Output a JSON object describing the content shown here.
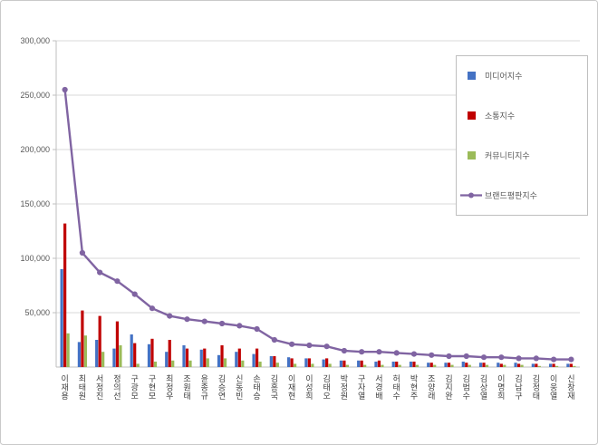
{
  "chart_data": {
    "type": "bar",
    "title": "",
    "xlabel": "",
    "ylabel": "",
    "ylim": [
      0,
      300000
    ],
    "ytick_interval": 50000,
    "ytick_labels": [
      "50,000",
      "100,000",
      "150,000",
      "200,000",
      "250,000",
      "300,000"
    ],
    "grid": true,
    "legend_position": "right-top",
    "categories": [
      "이재용",
      "최태원",
      "서정진",
      "정의선",
      "구광모",
      "구현모",
      "최정우",
      "조원태",
      "윤종규",
      "김승연",
      "신동빈",
      "손태승",
      "김홍국",
      "이재현",
      "이성희",
      "김태오",
      "박정원",
      "구자열",
      "서경배",
      "허태수",
      "박현주",
      "조양래",
      "김지완",
      "김범수",
      "김상열",
      "이명희",
      "김남구",
      "김정태",
      "이웅열",
      "신창재"
    ],
    "series": [
      {
        "name": "미디어지수",
        "kind": "bar",
        "color": "#4472C4",
        "values": [
          90000,
          23000,
          25000,
          17000,
          30000,
          21000,
          14000,
          20000,
          16000,
          11000,
          14000,
          12000,
          10000,
          9000,
          8000,
          7000,
          6000,
          6000,
          5000,
          5000,
          5000,
          4000,
          4000,
          5000,
          4000,
          4000,
          4000,
          3000,
          3000,
          3000
        ]
      },
      {
        "name": "소통지수",
        "kind": "bar",
        "color": "#C00000",
        "values": [
          132000,
          52000,
          47000,
          42000,
          22000,
          26000,
          25000,
          17000,
          17000,
          20000,
          17000,
          17000,
          10000,
          8000,
          8000,
          8000,
          6000,
          6000,
          6000,
          5000,
          5000,
          4000,
          4000,
          4000,
          4000,
          3000,
          3000,
          3000,
          3000,
          3000
        ]
      },
      {
        "name": "커뮤니티지수",
        "kind": "bar",
        "color": "#9BBB59",
        "values": [
          31000,
          29000,
          14000,
          20000,
          3000,
          5000,
          6000,
          6000,
          8000,
          8000,
          6000,
          5000,
          4000,
          3000,
          3000,
          3000,
          2000,
          2000,
          2000,
          2000,
          2000,
          2000,
          2000,
          2000,
          2000,
          2000,
          2000,
          1000,
          1000,
          1000
        ]
      },
      {
        "name": "브랜드평판지수",
        "kind": "line",
        "color": "#8064A2",
        "values": [
          255000,
          105000,
          87000,
          79000,
          67000,
          54000,
          47000,
          44000,
          42000,
          40000,
          38000,
          35000,
          25000,
          21000,
          20000,
          19000,
          15000,
          14000,
          14000,
          13000,
          12000,
          11000,
          10000,
          10000,
          9000,
          9000,
          8000,
          8000,
          7000,
          7000
        ]
      }
    ],
    "colors": {
      "grid": "#D9D9D9",
      "axis": "#BFBFBF",
      "tick_text": "#595959",
      "category_text": "#404040",
      "border": "#C9C9C9"
    }
  }
}
